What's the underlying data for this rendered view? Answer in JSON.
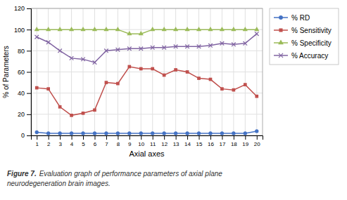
{
  "chart_data": {
    "type": "line",
    "x": [
      1,
      2,
      3,
      4,
      5,
      6,
      7,
      8,
      9,
      10,
      11,
      12,
      13,
      14,
      15,
      16,
      17,
      18,
      19,
      20
    ],
    "series": [
      {
        "name": "% RD",
        "color": "#4472C4",
        "marker": "circle",
        "values": [
          3,
          2,
          2,
          2,
          2,
          2,
          2,
          2,
          2,
          2,
          2,
          2,
          2,
          2,
          2,
          2,
          2,
          2,
          2,
          4
        ]
      },
      {
        "name": "% Sensitivity",
        "color": "#C0504D",
        "marker": "square",
        "values": [
          45,
          44,
          27,
          19,
          21,
          24,
          50,
          49,
          65,
          63,
          63,
          57,
          62,
          60,
          54,
          53,
          44,
          43,
          48,
          37
        ]
      },
      {
        "name": "% Specificity",
        "color": "#9BBB59",
        "marker": "triangle",
        "values": [
          100,
          100,
          100,
          100,
          100,
          100,
          100,
          100,
          96,
          96,
          100,
          100,
          100,
          100,
          100,
          100,
          100,
          100,
          100,
          100
        ]
      },
      {
        "name": "% Accuracy",
        "color": "#8064A2",
        "marker": "x",
        "values": [
          93,
          88,
          80,
          73,
          72,
          69,
          80,
          81,
          82,
          82,
          83,
          83,
          84,
          84,
          84,
          85,
          87,
          86,
          87,
          96
        ]
      }
    ],
    "xlabel": "Axial axes",
    "ylabel": "% of Parameters",
    "xlim": [
      0.5,
      20.5
    ],
    "xticks": [
      1,
      2,
      3,
      4,
      5,
      6,
      7,
      8,
      9,
      10,
      11,
      12,
      13,
      14,
      15,
      16,
      17,
      18,
      19,
      20
    ],
    "ylim": [
      0,
      120
    ],
    "yticks": [
      0,
      20,
      40,
      60,
      80,
      100,
      120
    ],
    "grid": true,
    "legend": "right",
    "annotations": [
      "Figure 7.",
      "Evaluation graph of performance parameters of axial plane",
      "neurodegeneration brain images."
    ]
  }
}
